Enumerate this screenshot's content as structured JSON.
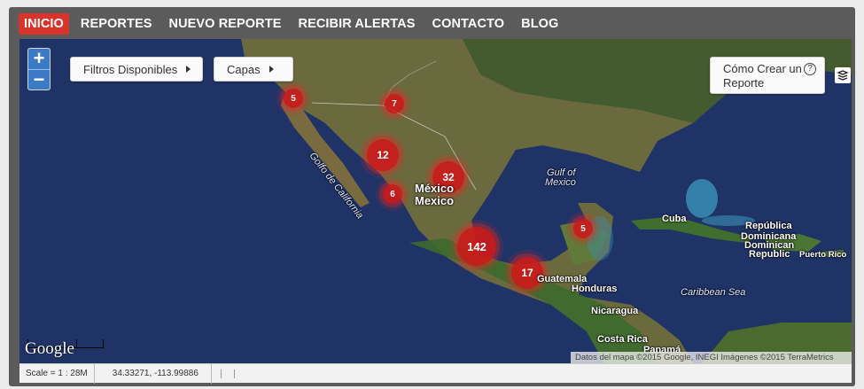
{
  "nav": [
    {
      "label": "INICIO",
      "active": true
    },
    {
      "label": "REPORTES",
      "active": false
    },
    {
      "label": "NUEVO REPORTE",
      "active": false
    },
    {
      "label": "RECIBIR ALERTAS",
      "active": false
    },
    {
      "label": "CONTACTO",
      "active": false
    },
    {
      "label": "BLOG",
      "active": false
    }
  ],
  "map_controls": {
    "zoom_in": "+",
    "zoom_out": "−",
    "filters_label": "Filtros Disponibles",
    "layers_label": "Capas",
    "help_label": "Cómo Crear un Reporte",
    "help_icon": "?"
  },
  "clusters": [
    {
      "id": "sonora-north",
      "count": "5"
    },
    {
      "id": "chihuahua",
      "count": "7"
    },
    {
      "id": "sinaloa",
      "count": "12"
    },
    {
      "id": "nayarit",
      "count": "6"
    },
    {
      "id": "bajio",
      "count": "32"
    },
    {
      "id": "centro-sur",
      "count": "142"
    },
    {
      "id": "chiapas",
      "count": "17"
    },
    {
      "id": "yucatan",
      "count": "5"
    }
  ],
  "map_labels": {
    "golfo_california": "Golfo de California",
    "gulf_mexico_1": "Gulf of",
    "gulf_mexico_2": "Mexico",
    "mexico_1": "México",
    "mexico_2": "Mexico",
    "cuba": "Cuba",
    "rep_dom_1": "República",
    "rep_dom_2": "Dominicana",
    "rep_dom_3": "Dominican",
    "rep_dom_4": "Republic",
    "puerto_rico": "Puerto Rico",
    "guatemala": "Guatemala",
    "honduras": "Honduras",
    "nicaragua": "Nicaragua",
    "costa_rica": "Costa Rica",
    "panama": "Panamá",
    "caribbean": "Caribbean Sea"
  },
  "google_logo": "Google",
  "attribution": "Datos del mapa ©2015 Google, INEGI Imágenes ©2015 TerraMetrics",
  "status": {
    "scale": "Scale = 1 : 28M",
    "coords": "34.33271, -113.99886"
  },
  "colors": {
    "nav_bg": "#5b5b5b",
    "nav_active": "#d9342b",
    "cluster": "#cc1a1a",
    "ocean": "#1d2f5e"
  }
}
